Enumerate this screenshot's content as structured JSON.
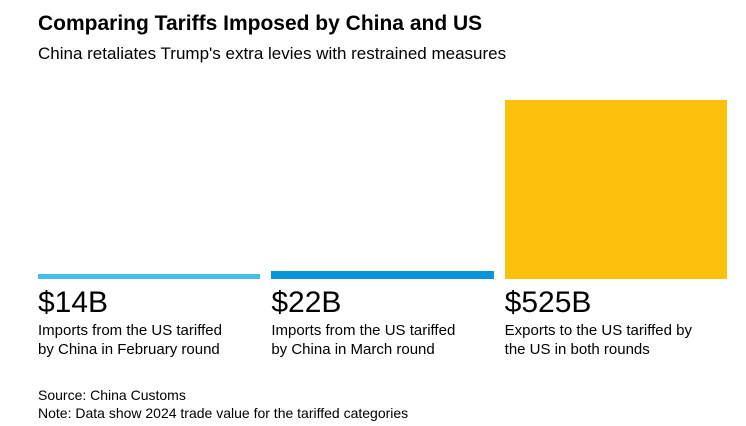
{
  "header": {
    "title": "Comparing Tariffs Imposed by China and US",
    "subtitle": "China retaliates Trump's extra levies with restrained measures"
  },
  "chart_data": {
    "type": "bar",
    "title": "Comparing Tariffs Imposed by China and US",
    "subtitle": "China retaliates Trump's extra levies with restrained measures",
    "unit": "USD billions",
    "ylim": [
      0,
      525
    ],
    "grid": false,
    "legend": "none",
    "categories": [
      "Imports from the US tariffed by China in February round",
      "Imports from the US tariffed by China in March round",
      "Exports to the US tariffed by the US in both rounds"
    ],
    "values": [
      14,
      22,
      525
    ],
    "bars": [
      {
        "value": 14,
        "value_label": "$14B",
        "color": "#45BDF0",
        "lines": [
          "Imports from the US tariffed",
          "by China in February round"
        ]
      },
      {
        "value": 22,
        "value_label": "$22B",
        "color": "#0A96D6",
        "lines": [
          "Imports from the US tariffed",
          "by China in March round"
        ]
      },
      {
        "value": 525,
        "value_label": "$525B",
        "color": "#FDC00D",
        "lines": [
          "Exports to the US tariffed by",
          "the US in both rounds"
        ]
      }
    ]
  },
  "footer": {
    "source": "Source: China Customs",
    "note": "Note: Data show 2024 trade value for the tariffed categories"
  }
}
